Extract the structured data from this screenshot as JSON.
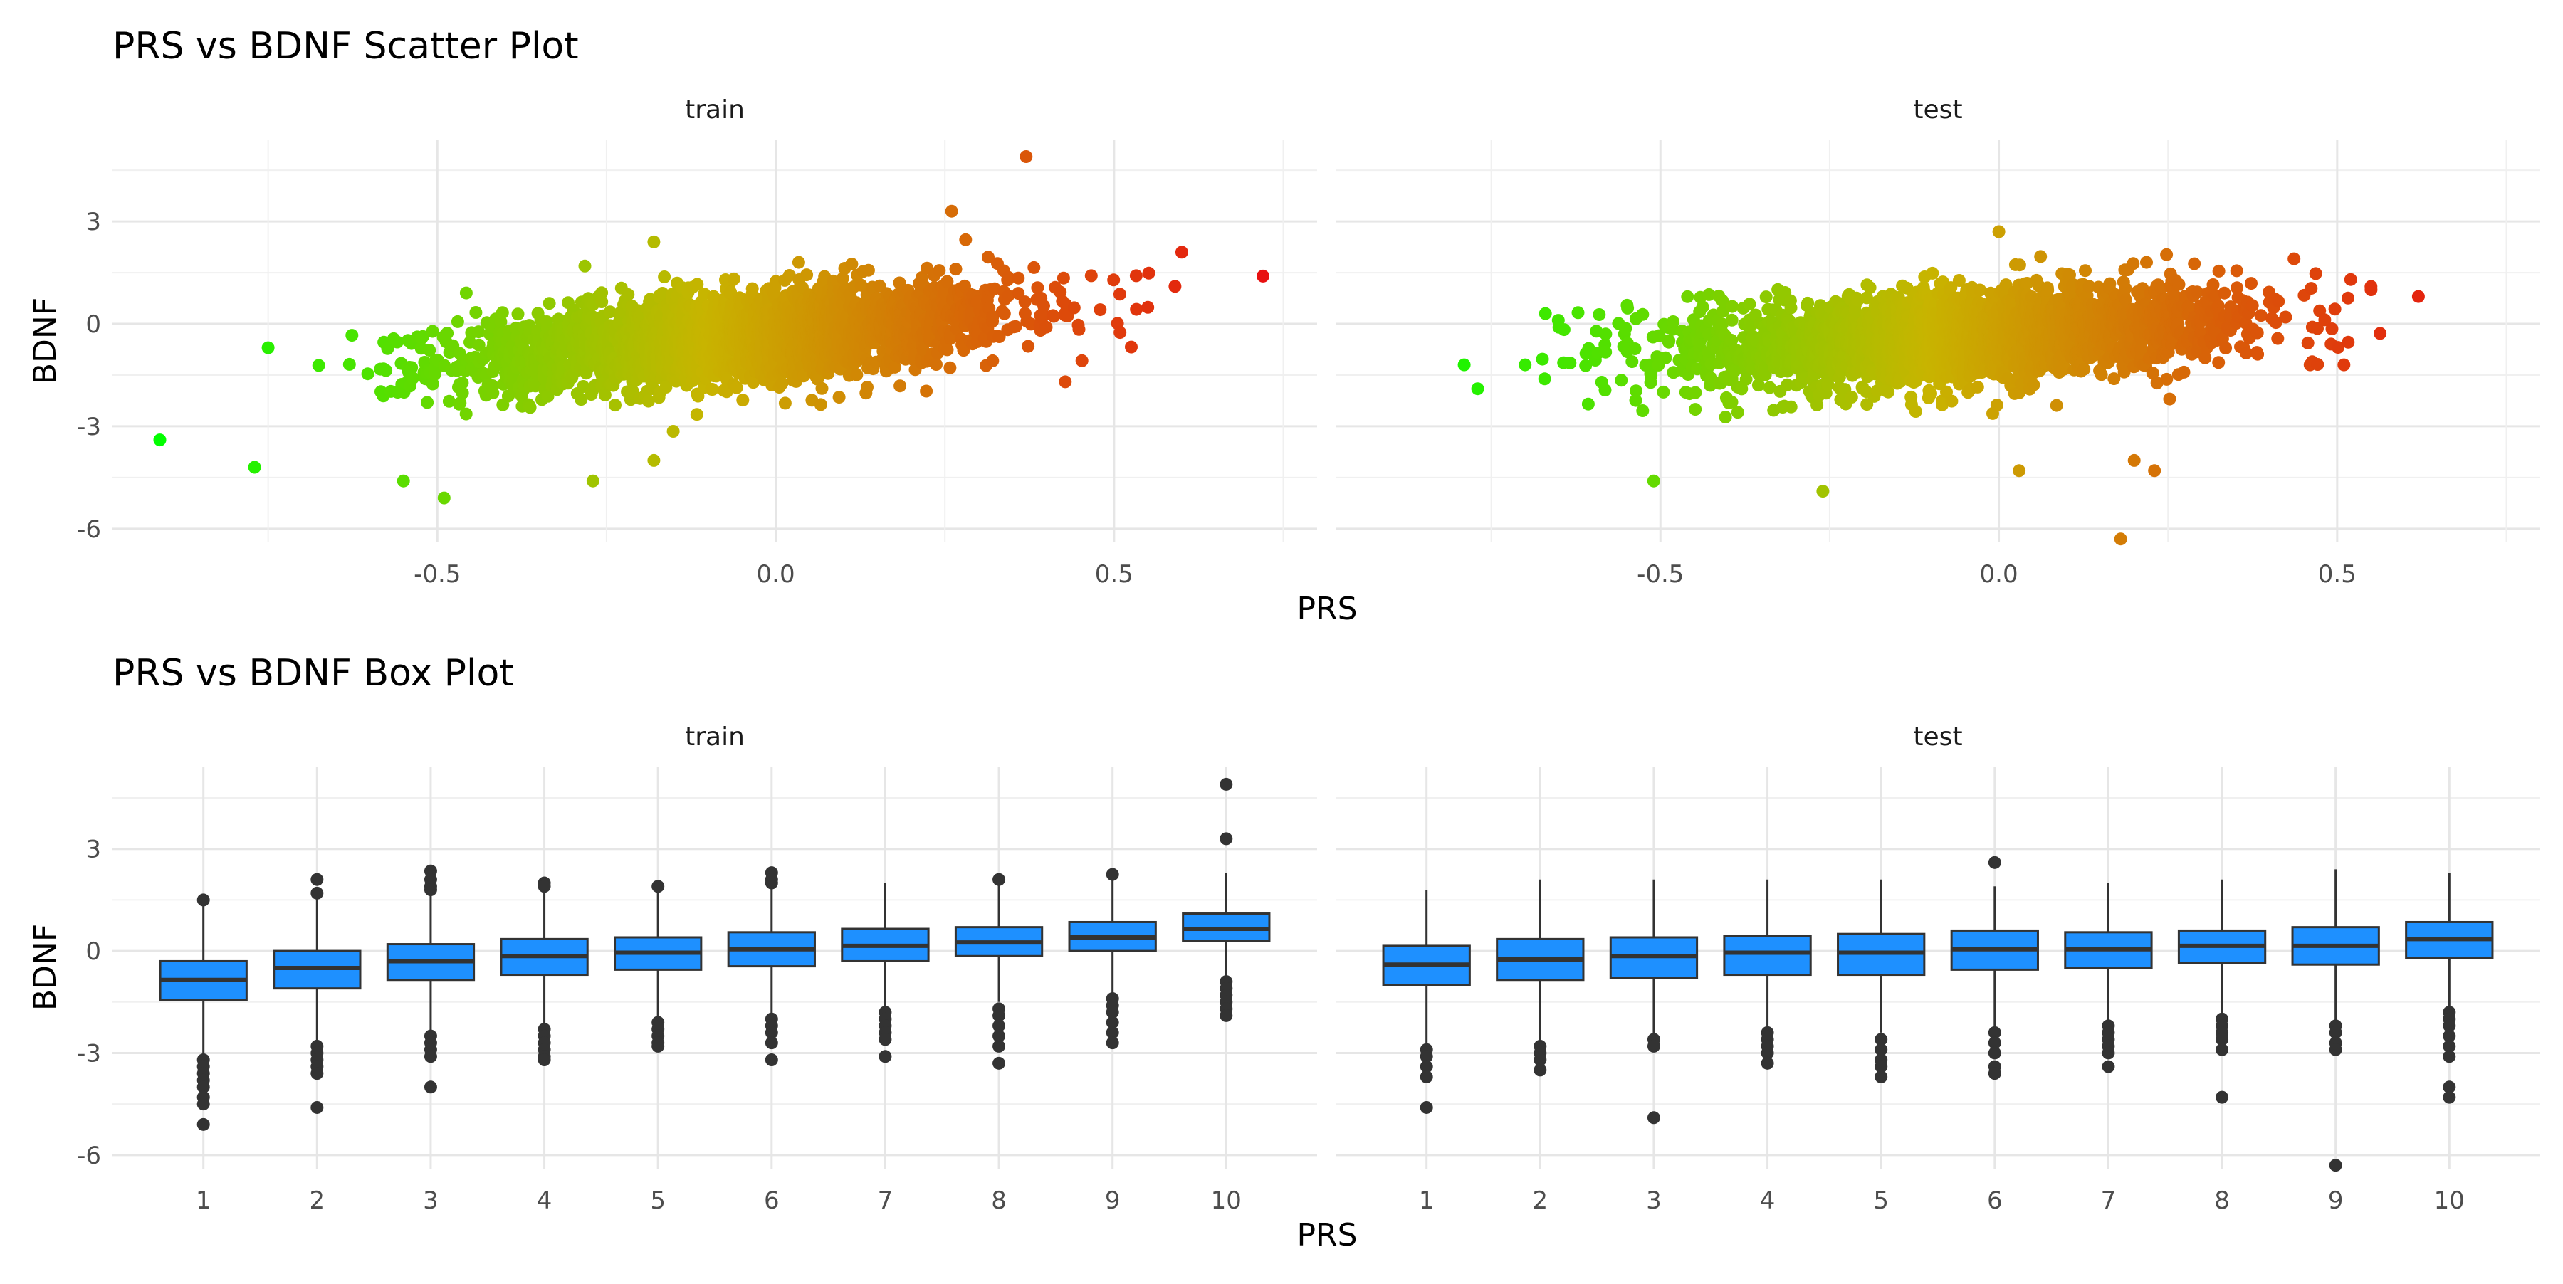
{
  "figure": {
    "xlabel": "PRS",
    "ylabel": "BDNF"
  },
  "chart_data": [
    {
      "type": "scatter",
      "title": "PRS vs BDNF Scatter Plot",
      "xlabel": "PRS",
      "ylabel": "BDNF",
      "facets": [
        "train",
        "test"
      ],
      "xlim": [
        -0.98,
        0.8
      ],
      "ylim": [
        -6.4,
        5.4
      ],
      "x_ticks": [
        -0.5,
        0.0,
        0.5
      ],
      "x_tick_labels": [
        "-0.5",
        "0.0",
        "0.5"
      ],
      "y_ticks": [
        -6,
        -3,
        0,
        3
      ],
      "y_tick_labels": [
        "-6",
        "-3",
        "0",
        "3"
      ],
      "grid": true,
      "color_scale": {
        "low": "#00ff00",
        "mid": "#c8b400",
        "high": "#e81010",
        "by": "PRS"
      },
      "series": [
        {
          "facet": "train",
          "trend": {
            "slope": 1.6,
            "intercept": -0.3,
            "x_mean": -0.05,
            "x_sd": 0.2,
            "noise_sd": 0.75
          },
          "points": [
            {
              "x": -0.91,
              "y": -3.4
            },
            {
              "x": -0.77,
              "y": -4.2
            },
            {
              "x": -0.75,
              "y": -0.7
            },
            {
              "x": -0.55,
              "y": -4.6
            },
            {
              "x": -0.49,
              "y": -5.1
            },
            {
              "x": -0.27,
              "y": -4.6
            },
            {
              "x": -0.18,
              "y": -4.0
            },
            {
              "x": -0.18,
              "y": 2.4
            },
            {
              "x": 0.26,
              "y": 3.3
            },
            {
              "x": 0.37,
              "y": 4.9
            },
            {
              "x": 0.6,
              "y": 2.1
            },
            {
              "x": 0.72,
              "y": 1.4
            },
            {
              "x": 0.59,
              "y": 1.1
            }
          ]
        },
        {
          "facet": "test",
          "trend": {
            "slope": 1.1,
            "intercept": -0.3,
            "x_mean": -0.05,
            "x_sd": 0.2,
            "noise_sd": 0.75
          },
          "points": [
            {
              "x": -0.79,
              "y": -1.2
            },
            {
              "x": -0.77,
              "y": -1.9
            },
            {
              "x": -0.7,
              "y": -1.2
            },
            {
              "x": -0.67,
              "y": 0.3
            },
            {
              "x": -0.65,
              "y": -0.1
            },
            {
              "x": -0.51,
              "y": -4.6
            },
            {
              "x": -0.26,
              "y": -4.9
            },
            {
              "x": 0.0,
              "y": 2.7
            },
            {
              "x": 0.03,
              "y": -4.3
            },
            {
              "x": 0.18,
              "y": -6.3
            },
            {
              "x": 0.2,
              "y": -4.0
            },
            {
              "x": 0.23,
              "y": -4.3
            },
            {
              "x": 0.52,
              "y": 1.3
            },
            {
              "x": 0.55,
              "y": 1.0
            },
            {
              "x": 0.62,
              "y": 0.8
            },
            {
              "x": 0.51,
              "y": -1.2
            },
            {
              "x": 0.46,
              "y": -1.2
            }
          ]
        }
      ]
    },
    {
      "type": "box",
      "title": "PRS vs BDNF Box Plot",
      "xlabel": "PRS",
      "ylabel": "BDNF",
      "facets": [
        "train",
        "test"
      ],
      "categories": [
        "1",
        "2",
        "3",
        "4",
        "5",
        "6",
        "7",
        "8",
        "9",
        "10"
      ],
      "ylim": [
        -6.4,
        5.4
      ],
      "y_ticks": [
        -6,
        -3,
        0,
        3
      ],
      "y_tick_labels": [
        "-6",
        "-3",
        "0",
        "3"
      ],
      "grid": true,
      "box_color": "#1e90ff",
      "series": [
        {
          "facet": "train",
          "boxes": [
            {
              "q1": -1.45,
              "median": -0.85,
              "q3": -0.3,
              "whisker_low": -3.1,
              "whisker_high": 1.4,
              "outliers": [
                1.5,
                -3.2,
                -3.4,
                -3.6,
                -3.8,
                -4.0,
                -4.3,
                -4.5,
                -5.1
              ]
            },
            {
              "q1": -1.1,
              "median": -0.5,
              "q3": 0.0,
              "whisker_low": -2.7,
              "whisker_high": 1.6,
              "outliers": [
                2.1,
                1.7,
                -2.8,
                -3.0,
                -3.2,
                -3.4,
                -3.6,
                -4.6
              ]
            },
            {
              "q1": -0.85,
              "median": -0.3,
              "q3": 0.2,
              "whisker_low": -2.4,
              "whisker_high": 1.7,
              "outliers": [
                2.35,
                2.1,
                1.9,
                1.8,
                -2.5,
                -2.7,
                -2.9,
                -3.1,
                -4.0
              ]
            },
            {
              "q1": -0.7,
              "median": -0.15,
              "q3": 0.35,
              "whisker_low": -2.2,
              "whisker_high": 1.8,
              "outliers": [
                2.0,
                1.9,
                -2.3,
                -2.5,
                -2.7,
                -2.9,
                -3.1,
                -3.2
              ]
            },
            {
              "q1": -0.55,
              "median": -0.05,
              "q3": 0.4,
              "whisker_low": -2.0,
              "whisker_high": 1.9,
              "outliers": [
                1.9,
                -2.1,
                -2.3,
                -2.5,
                -2.7,
                -2.8
              ]
            },
            {
              "q1": -0.45,
              "median": 0.05,
              "q3": 0.55,
              "whisker_low": -1.9,
              "whisker_high": 1.9,
              "outliers": [
                2.3,
                2.1,
                2.0,
                -2.0,
                -2.2,
                -2.4,
                -2.7,
                -3.2
              ]
            },
            {
              "q1": -0.3,
              "median": 0.15,
              "q3": 0.65,
              "whisker_low": -1.7,
              "whisker_high": 2.0,
              "outliers": [
                -1.8,
                -2.0,
                -2.2,
                -2.4,
                -2.6,
                -3.1
              ]
            },
            {
              "q1": -0.15,
              "median": 0.25,
              "q3": 0.7,
              "whisker_low": -1.5,
              "whisker_high": 2.0,
              "outliers": [
                2.1,
                -1.7,
                -1.9,
                -2.2,
                -2.5,
                -2.8,
                -3.3
              ]
            },
            {
              "q1": 0.0,
              "median": 0.4,
              "q3": 0.85,
              "whisker_low": -1.3,
              "whisker_high": 2.1,
              "outliers": [
                2.25,
                -1.4,
                -1.6,
                -1.8,
                -2.1,
                -2.4,
                -2.7
              ]
            },
            {
              "q1": 0.3,
              "median": 0.65,
              "q3": 1.1,
              "whisker_low": -0.8,
              "whisker_high": 2.3,
              "outliers": [
                4.9,
                3.3,
                -0.9,
                -1.1,
                -1.3,
                -1.5,
                -1.7,
                -1.9
              ]
            }
          ]
        },
        {
          "facet": "test",
          "boxes": [
            {
              "q1": -1.0,
              "median": -0.4,
              "q3": 0.15,
              "whisker_low": -2.7,
              "whisker_high": 1.8,
              "outliers": [
                -2.9,
                -3.1,
                -3.4,
                -3.7,
                -4.6
              ]
            },
            {
              "q1": -0.85,
              "median": -0.25,
              "q3": 0.35,
              "whisker_low": -2.7,
              "whisker_high": 2.1,
              "outliers": [
                -2.8,
                -3.0,
                -3.2,
                -3.5
              ]
            },
            {
              "q1": -0.8,
              "median": -0.15,
              "q3": 0.4,
              "whisker_low": -2.5,
              "whisker_high": 2.1,
              "outliers": [
                -2.6,
                -2.8,
                -4.9
              ]
            },
            {
              "q1": -0.7,
              "median": -0.05,
              "q3": 0.45,
              "whisker_low": -2.3,
              "whisker_high": 2.1,
              "outliers": [
                -2.4,
                -2.6,
                -2.8,
                -3.0,
                -3.3
              ]
            },
            {
              "q1": -0.7,
              "median": -0.05,
              "q3": 0.5,
              "whisker_low": -2.4,
              "whisker_high": 2.1,
              "outliers": [
                -2.6,
                -2.9,
                -3.2,
                -3.4,
                -3.7
              ]
            },
            {
              "q1": -0.55,
              "median": 0.05,
              "q3": 0.6,
              "whisker_low": -2.2,
              "whisker_high": 1.9,
              "outliers": [
                2.6,
                -2.4,
                -2.7,
                -3.0,
                -3.4,
                -3.6
              ]
            },
            {
              "q1": -0.5,
              "median": 0.05,
              "q3": 0.55,
              "whisker_low": -2.1,
              "whisker_high": 2.0,
              "outliers": [
                -2.2,
                -2.4,
                -2.6,
                -2.8,
                -3.0,
                -3.4
              ]
            },
            {
              "q1": -0.35,
              "median": 0.15,
              "q3": 0.6,
              "whisker_low": -1.9,
              "whisker_high": 2.1,
              "outliers": [
                -2.0,
                -2.2,
                -2.4,
                -2.6,
                -2.9,
                -4.3
              ]
            },
            {
              "q1": -0.4,
              "median": 0.15,
              "q3": 0.7,
              "whisker_low": -2.1,
              "whisker_high": 2.4,
              "outliers": [
                -2.2,
                -2.4,
                -2.7,
                -2.9,
                -6.3
              ]
            },
            {
              "q1": -0.2,
              "median": 0.35,
              "q3": 0.85,
              "whisker_low": -1.7,
              "whisker_high": 2.3,
              "outliers": [
                -1.8,
                -2.0,
                -2.2,
                -2.5,
                -2.8,
                -3.1,
                -4.0,
                -4.3
              ]
            }
          ]
        }
      ]
    }
  ]
}
